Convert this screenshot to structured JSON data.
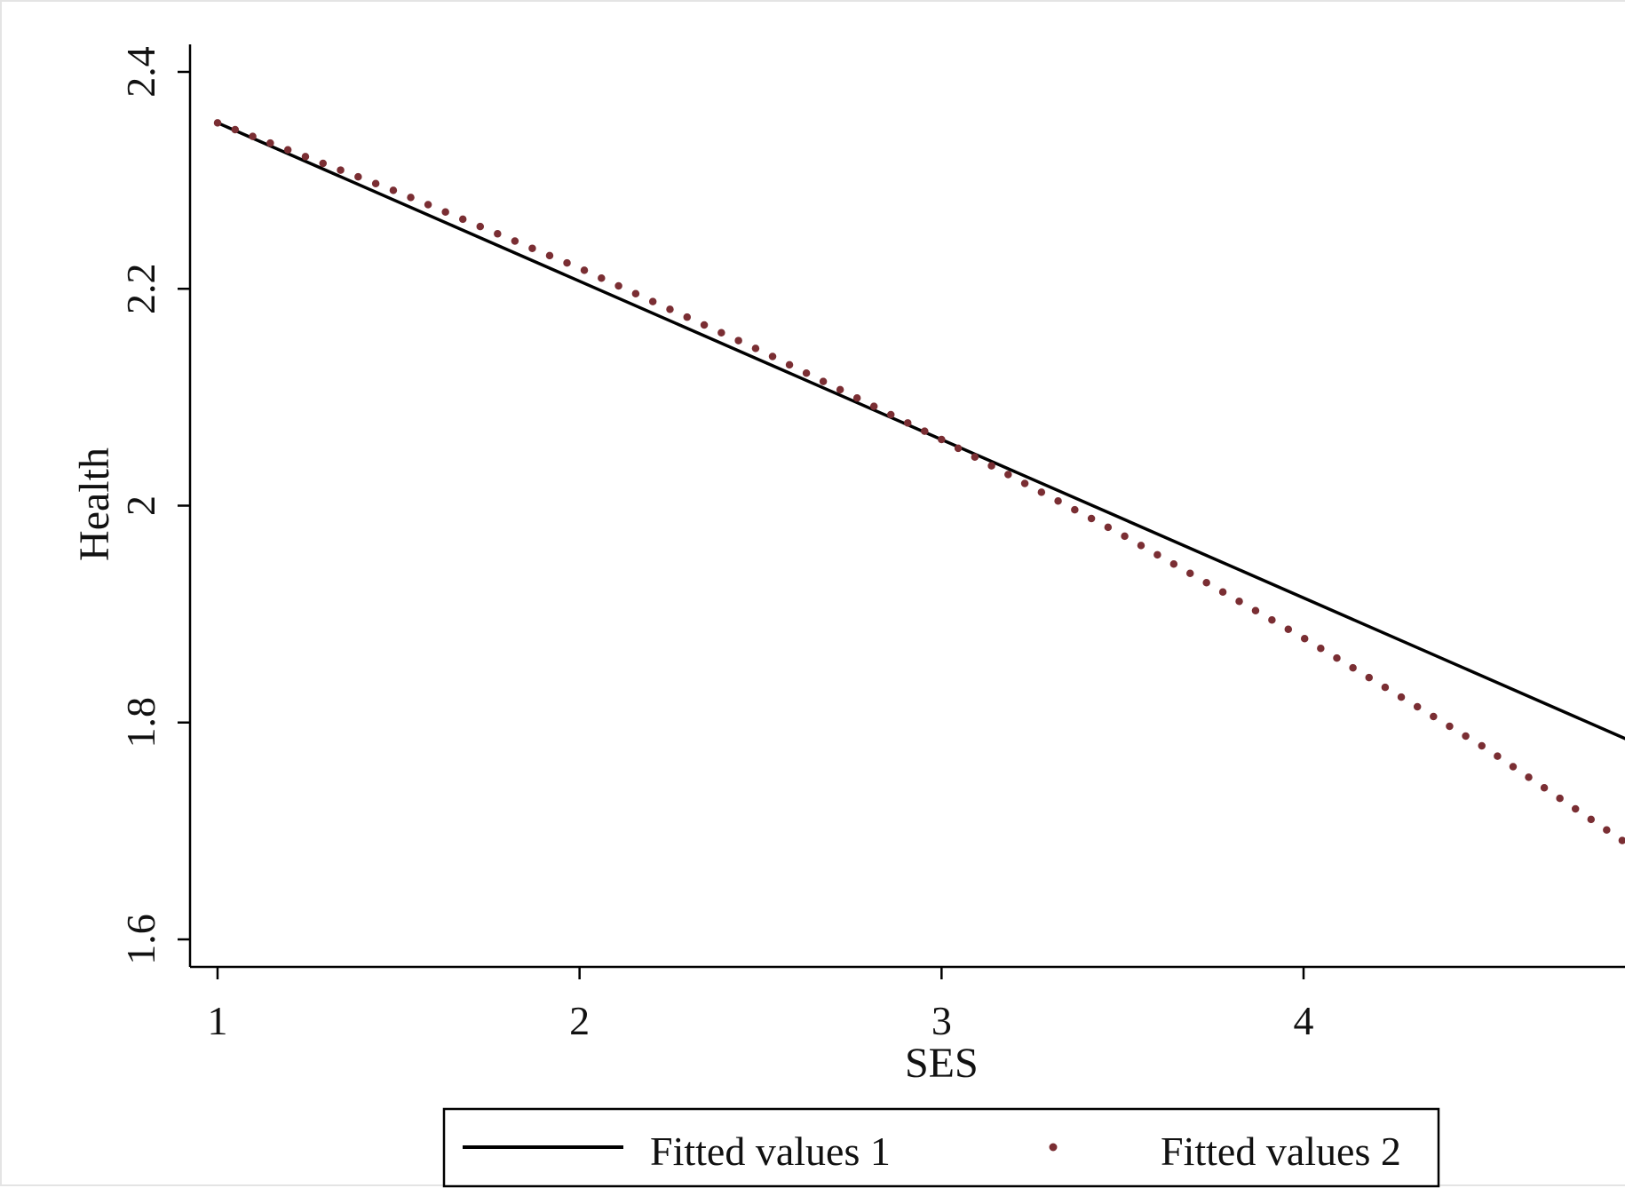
{
  "chart_data": {
    "type": "line",
    "title": "",
    "xlabel": "SES",
    "ylabel": "Health",
    "xlim": [
      1,
      4.89
    ],
    "ylim": [
      1.6,
      2.4
    ],
    "xticks": [
      "1",
      "2",
      "3",
      "4"
    ],
    "yticks": [
      "1.6",
      "1.8",
      "2",
      "2.2",
      "2.4"
    ],
    "grid": false,
    "legend_position": "bottom",
    "series": [
      {
        "name": "Fitted values 1",
        "style": "solid",
        "color": "#000000",
        "x": [
          1,
          4.89
        ],
        "y": [
          2.353,
          1.785
        ]
      },
      {
        "name": "Fitted values 2",
        "style": "dotted",
        "color": "#7a2e33",
        "x": [
          1,
          1.5,
          2,
          2.5,
          3,
          3.5,
          4,
          4.5,
          4.89
        ],
        "y": [
          2.353,
          2.289,
          2.219,
          2.143,
          2.061,
          1.973,
          1.878,
          1.777,
          1.689
        ]
      }
    ]
  }
}
